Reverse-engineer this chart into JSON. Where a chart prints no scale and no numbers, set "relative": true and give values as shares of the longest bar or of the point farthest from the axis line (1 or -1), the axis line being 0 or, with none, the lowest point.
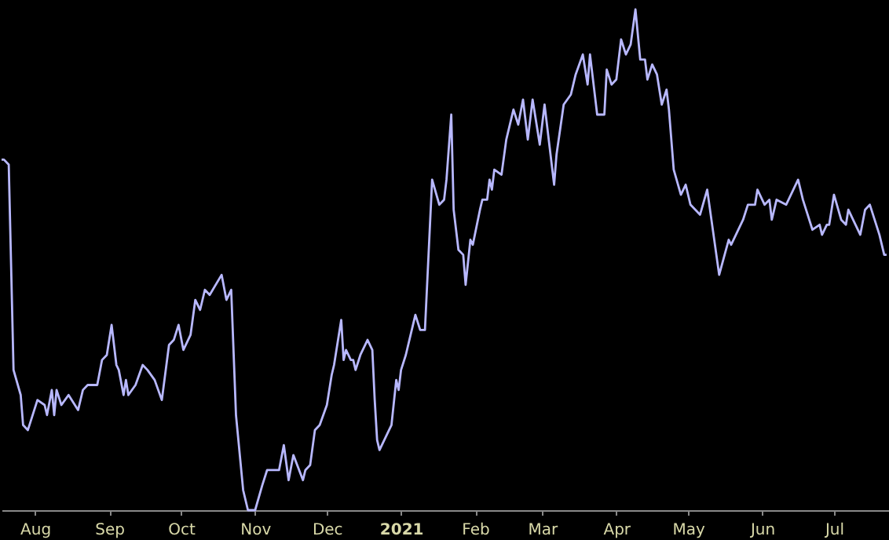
{
  "chart_data": {
    "type": "line",
    "relative": true,
    "color": "#b8b8ff",
    "grid": false,
    "marker": "none",
    "line_style": "solid",
    "tick_labels": "x",
    "xlim": [
      "2020-07-18",
      "2021-07-24"
    ],
    "xticks": [
      {
        "value": "2020-08-01",
        "label": "Aug"
      },
      {
        "value": "2020-09-01",
        "label": "Sep"
      },
      {
        "value": "2020-10-01",
        "label": "Oct"
      },
      {
        "value": "2020-11-01",
        "label": "Nov"
      },
      {
        "value": "2020-12-01",
        "label": "Dec"
      },
      {
        "value": "2021-01-01",
        "label": "2021"
      },
      {
        "value": "2021-02-01",
        "label": "Feb"
      },
      {
        "value": "2021-03-01",
        "label": "Mar"
      },
      {
        "value": "2021-04-01",
        "label": "Apr"
      },
      {
        "value": "2021-05-01",
        "label": "May"
      },
      {
        "value": "2021-06-01",
        "label": "Jun"
      },
      {
        "value": "2021-07-01",
        "label": "Jul"
      }
    ],
    "x": [
      "2020-07-18",
      "2020-07-19",
      "2020-07-21",
      "2020-07-23",
      "2020-07-26",
      "2020-07-27",
      "2020-07-29",
      "2020-08-02",
      "2020-08-05",
      "2020-08-06",
      "2020-08-08",
      "2020-08-09",
      "2020-08-10",
      "2020-08-12",
      "2020-08-15",
      "2020-08-19",
      "2020-08-21",
      "2020-08-23",
      "2020-08-27",
      "2020-08-29",
      "2020-08-31",
      "2020-09-02",
      "2020-09-04",
      "2020-09-05",
      "2020-09-07",
      "2020-09-08",
      "2020-09-09",
      "2020-09-12",
      "2020-09-15",
      "2020-09-17",
      "2020-09-20",
      "2020-09-23",
      "2020-09-26",
      "2020-09-28",
      "2020-09-30",
      "2020-10-02",
      "2020-10-05",
      "2020-10-07",
      "2020-10-09",
      "2020-10-11",
      "2020-10-13",
      "2020-10-18",
      "2020-10-20",
      "2020-10-22",
      "2020-10-24",
      "2020-10-27",
      "2020-10-29",
      "2020-11-01",
      "2020-11-04",
      "2020-11-06",
      "2020-11-08",
      "2020-11-11",
      "2020-11-13",
      "2020-11-15",
      "2020-11-17",
      "2020-11-21",
      "2020-11-22",
      "2020-11-24",
      "2020-11-26",
      "2020-11-28",
      "2020-12-01",
      "2020-12-03",
      "2020-12-04",
      "2020-12-07",
      "2020-12-08",
      "2020-12-09",
      "2020-12-11",
      "2020-12-12",
      "2020-12-13",
      "2020-12-15",
      "2020-12-18",
      "2020-12-20",
      "2020-12-21",
      "2020-12-22",
      "2020-12-23",
      "2020-12-25",
      "2020-12-27",
      "2020-12-28",
      "2020-12-30",
      "2020-12-31",
      "2021-01-01",
      "2021-01-03",
      "2021-01-05",
      "2021-01-07",
      "2021-01-09",
      "2021-01-11",
      "2021-01-14",
      "2021-01-17",
      "2021-01-19",
      "2021-01-20",
      "2021-01-22",
      "2021-01-23",
      "2021-01-25",
      "2021-01-27",
      "2021-01-28",
      "2021-01-30",
      "2021-01-31",
      "2021-02-03",
      "2021-02-04",
      "2021-02-06",
      "2021-02-07",
      "2021-02-08",
      "2021-02-09",
      "2021-02-12",
      "2021-02-14",
      "2021-02-17",
      "2021-02-19",
      "2021-02-21",
      "2021-02-23",
      "2021-02-25",
      "2021-02-28",
      "2021-03-02",
      "2021-03-06",
      "2021-03-07",
      "2021-03-10",
      "2021-03-13",
      "2021-03-15",
      "2021-03-18",
      "2021-03-20",
      "2021-03-21",
      "2021-03-24",
      "2021-03-27",
      "2021-03-28",
      "2021-03-30",
      "2021-04-01",
      "2021-04-03",
      "2021-04-05",
      "2021-04-07",
      "2021-04-09",
      "2021-04-11",
      "2021-04-13",
      "2021-04-14",
      "2021-04-16",
      "2021-04-18",
      "2021-04-20",
      "2021-04-22",
      "2021-04-23",
      "2021-04-25",
      "2021-04-28",
      "2021-04-30",
      "2021-05-02",
      "2021-05-06",
      "2021-05-09",
      "2021-05-14",
      "2021-05-18",
      "2021-05-19",
      "2021-05-24",
      "2021-05-26",
      "2021-05-29",
      "2021-05-30",
      "2021-06-02",
      "2021-06-04",
      "2021-06-05",
      "2021-06-07",
      "2021-06-11",
      "2021-06-16",
      "2021-06-18",
      "2021-06-22",
      "2021-06-25",
      "2021-06-26",
      "2021-06-28",
      "2021-06-29",
      "2021-07-01",
      "2021-07-04",
      "2021-07-06",
      "2021-07-07",
      "2021-07-10",
      "2021-07-12",
      "2021-07-14",
      "2021-07-16",
      "2021-07-20",
      "2021-07-22",
      "2021-07-23"
    ],
    "values": [
      0.7,
      0.7,
      0.69,
      0.28,
      0.23,
      0.17,
      0.16,
      0.22,
      0.21,
      0.19,
      0.24,
      0.19,
      0.24,
      0.21,
      0.23,
      0.2,
      0.24,
      0.25,
      0.25,
      0.3,
      0.31,
      0.37,
      0.29,
      0.28,
      0.23,
      0.26,
      0.23,
      0.25,
      0.29,
      0.28,
      0.26,
      0.22,
      0.33,
      0.34,
      0.37,
      0.32,
      0.35,
      0.42,
      0.4,
      0.44,
      0.43,
      0.47,
      0.42,
      0.44,
      0.19,
      0.04,
      0.0,
      0.0,
      0.05,
      0.08,
      0.08,
      0.08,
      0.13,
      0.06,
      0.11,
      0.06,
      0.08,
      0.09,
      0.16,
      0.17,
      0.21,
      0.27,
      0.29,
      0.38,
      0.3,
      0.32,
      0.3,
      0.3,
      0.28,
      0.31,
      0.34,
      0.32,
      0.22,
      0.14,
      0.12,
      0.14,
      0.16,
      0.17,
      0.26,
      0.24,
      0.28,
      0.31,
      0.35,
      0.39,
      0.36,
      0.36,
      0.66,
      0.61,
      0.62,
      0.66,
      0.79,
      0.6,
      0.52,
      0.51,
      0.45,
      0.54,
      0.53,
      0.6,
      0.62,
      0.62,
      0.66,
      0.64,
      0.68,
      0.67,
      0.74,
      0.8,
      0.77,
      0.82,
      0.74,
      0.82,
      0.73,
      0.81,
      0.65,
      0.71,
      0.81,
      0.83,
      0.87,
      0.91,
      0.85,
      0.91,
      0.79,
      0.79,
      0.88,
      0.85,
      0.86,
      0.94,
      0.91,
      0.93,
      1.0,
      0.9,
      0.9,
      0.86,
      0.89,
      0.87,
      0.81,
      0.84,
      0.8,
      0.68,
      0.63,
      0.65,
      0.61,
      0.59,
      0.64,
      0.47,
      0.54,
      0.53,
      0.58,
      0.61,
      0.61,
      0.64,
      0.61,
      0.62,
      0.58,
      0.62,
      0.61,
      0.66,
      0.62,
      0.56,
      0.57,
      0.55,
      0.57,
      0.57,
      0.63,
      0.58,
      0.57,
      0.6,
      0.57,
      0.55,
      0.6,
      0.61,
      0.55,
      0.51,
      0.51
    ]
  }
}
